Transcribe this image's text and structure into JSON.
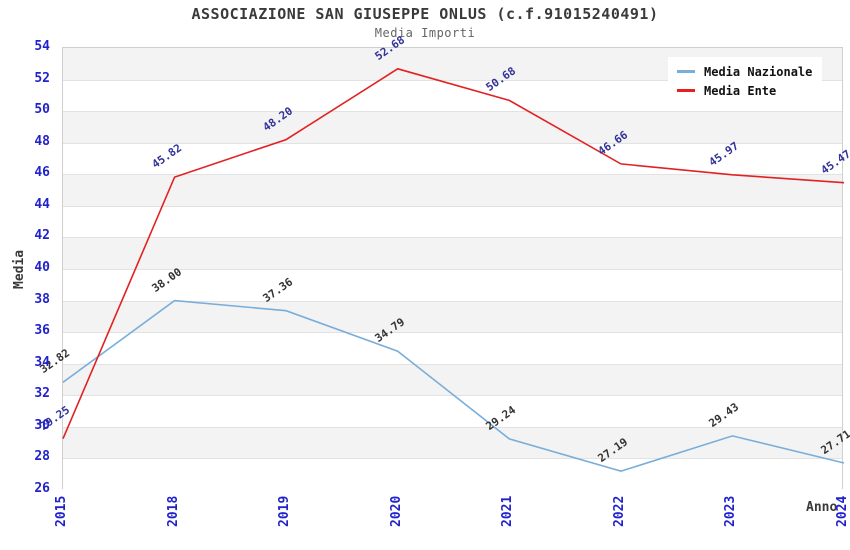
{
  "title": "ASSOCIAZIONE SAN GIUSEPPE ONLUS (c.f.91015240491)",
  "subtitle": "Media Importi",
  "chart_data": {
    "type": "line",
    "categories": [
      "2015",
      "2018",
      "2019",
      "2020",
      "2021",
      "2022",
      "2023",
      "2024"
    ],
    "series": [
      {
        "name": "Media Nazionale",
        "color": "#79aedb",
        "label_color": "#333333",
        "values": [
          32.82,
          38.0,
          37.36,
          34.79,
          29.24,
          27.19,
          29.43,
          27.71
        ]
      },
      {
        "name": "Media Ente",
        "color": "#e22222",
        "label_color": "#333399",
        "values": [
          29.25,
          45.82,
          48.2,
          52.68,
          50.68,
          46.66,
          45.97,
          45.47
        ]
      }
    ],
    "xlabel": "Anno",
    "ylabel": "Media",
    "ylim": [
      26,
      54
    ],
    "ytick_step": 2,
    "y_ticks": [
      54,
      52,
      50,
      48,
      46,
      44,
      42,
      40,
      38,
      36,
      34,
      32,
      30,
      28,
      26
    ],
    "x_ticks": [
      "2015",
      "2018",
      "2019",
      "2020",
      "2021",
      "2022",
      "2023",
      "2024"
    ],
    "legend_position": "top-right",
    "grid": "horizontal-alternating-bands",
    "value_label_format": "0.00"
  },
  "colors": {
    "tick_label_blue": "#2222cc",
    "band_gray": "#f3f3f3",
    "band_white": "#ffffff",
    "grid_line": "#e2e2e2",
    "plot_border": "#cfcfcf",
    "title_text": "#3a3a3a",
    "subtitle_text": "#666666",
    "axis_label_text": "#3a3a3a",
    "legend_text": "#111111"
  }
}
